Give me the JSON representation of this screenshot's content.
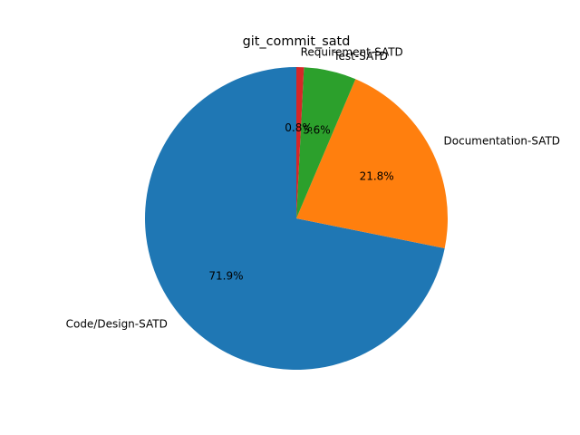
{
  "chart_data": {
    "type": "pie",
    "title": "git_commit_satd",
    "start_angle_deg": 90,
    "direction": "counterclockwise",
    "slices": [
      {
        "label": "Code/Design-SATD",
        "value": 71.9,
        "pct_label": "71.9%",
        "color": "#1f77b4"
      },
      {
        "label": "Documentation-SATD",
        "value": 21.8,
        "pct_label": "21.8%",
        "color": "#ff7f0e"
      },
      {
        "label": "Test-SATD",
        "value": 5.6,
        "pct_label": "5.6%",
        "color": "#2ca02c"
      },
      {
        "label": "Requirement-SATD",
        "value": 0.8,
        "pct_label": "0.8%",
        "color": "#d62728"
      }
    ]
  }
}
